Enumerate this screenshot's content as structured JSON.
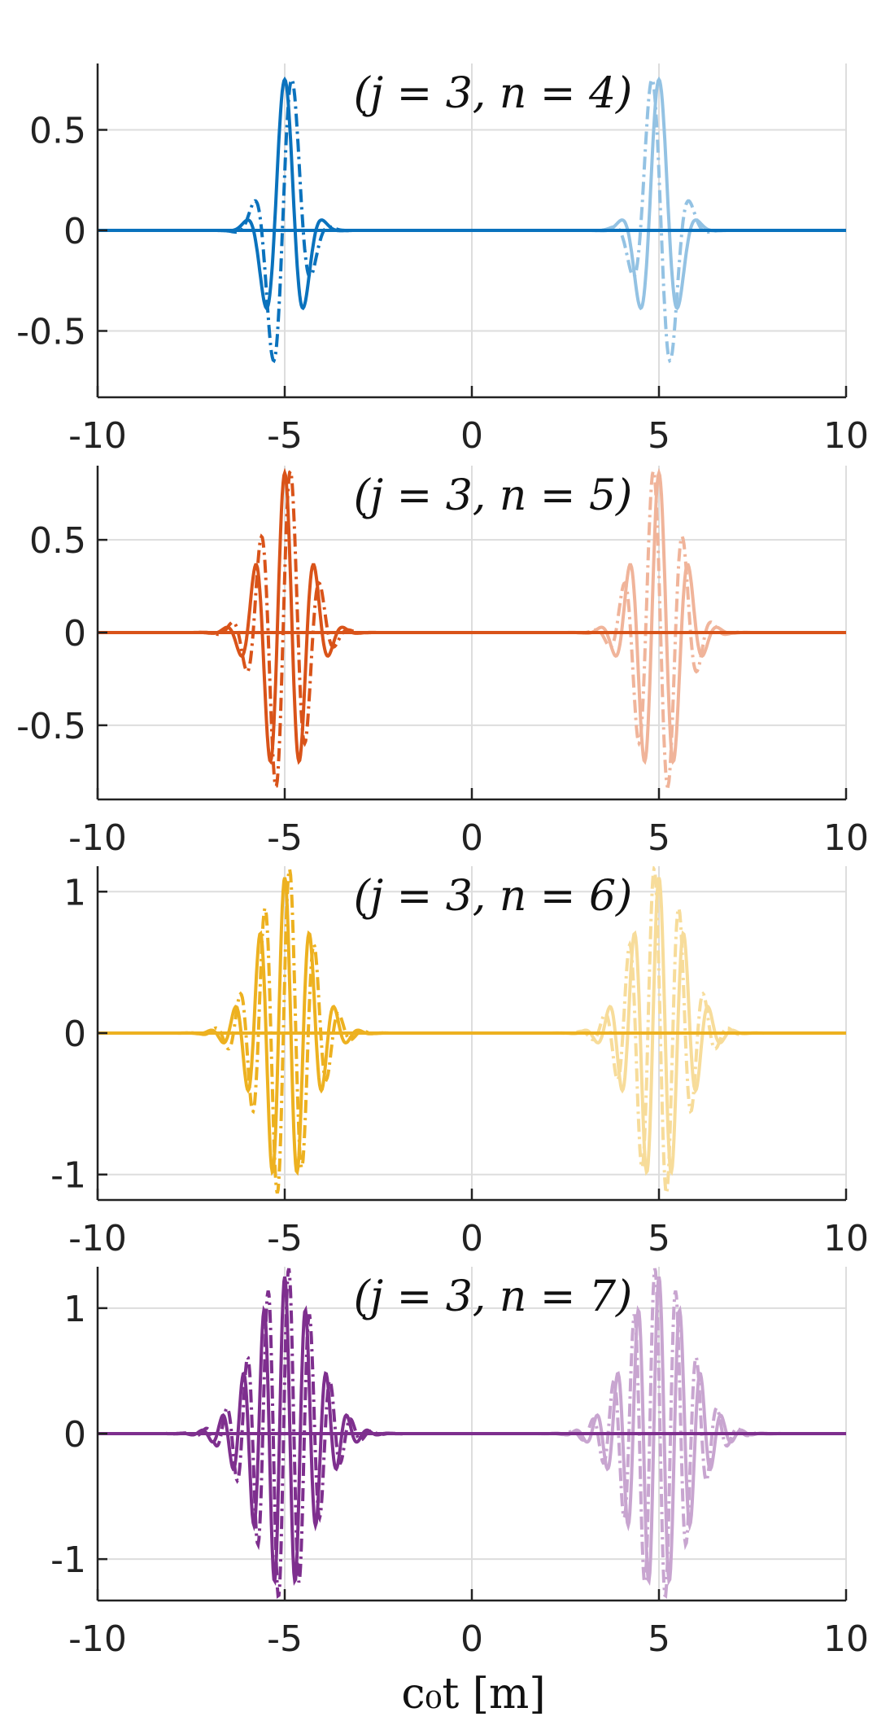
{
  "figure": {
    "xlabel": "c₀t [m]"
  },
  "chart_data": [
    {
      "type": "line",
      "title": "(j = 3, n = 4)",
      "xlim": [
        -10,
        10
      ],
      "ylim": [
        -0.83,
        0.83
      ],
      "xticks": [
        -10,
        -5,
        0,
        5,
        10
      ],
      "yticks": [
        -0.5,
        0,
        0.5
      ],
      "xtick_labels": [
        "-10",
        "-5",
        "0",
        "5",
        "10"
      ],
      "ytick_labels": [
        "-0.5",
        "0",
        "0.5"
      ],
      "grid": true,
      "color": "#0a72bd",
      "light_color": "#93c2e3",
      "wavelets": [
        {
          "center": -5.0,
          "real_amp": 0.75,
          "imag_amp": 0.83,
          "width": 0.45,
          "frequency": 0.9,
          "style": "solid+dashdot"
        },
        {
          "center": 5.0,
          "real_amp": 0.75,
          "imag_amp": 0.83,
          "width": 0.45,
          "frequency": 0.9,
          "style": "solid+dashdot",
          "faded": true
        }
      ]
    },
    {
      "type": "line",
      "title": "(j = 3, n = 5)",
      "xlim": [
        -10,
        10
      ],
      "ylim": [
        -0.9,
        0.9
      ],
      "xticks": [
        -10,
        -5,
        0,
        5,
        10
      ],
      "yticks": [
        -0.5,
        0,
        0.5
      ],
      "xtick_labels": [
        "-10",
        "-5",
        "0",
        "5",
        "10"
      ],
      "ytick_labels": [
        "-0.5",
        "0",
        "0.5"
      ],
      "grid": true,
      "color": "#d95319",
      "light_color": "#f0b49a",
      "wavelets": [
        {
          "center": -5.0,
          "real_amp": 0.86,
          "imag_amp": 0.9,
          "width": 0.6,
          "frequency": 1.25,
          "style": "solid+dashdot"
        },
        {
          "center": 5.0,
          "real_amp": 0.86,
          "imag_amp": 0.9,
          "width": 0.6,
          "frequency": 1.25,
          "style": "solid+dashdot",
          "faded": true
        }
      ]
    },
    {
      "type": "line",
      "title": "(j = 3, n = 6)",
      "xlim": [
        -10,
        10
      ],
      "ylim": [
        -1.18,
        1.18
      ],
      "xticks": [
        -10,
        -5,
        0,
        5,
        10
      ],
      "yticks": [
        -1,
        0,
        1
      ],
      "xtick_labels": [
        "-10",
        "-5",
        "0",
        "5",
        "10"
      ],
      "ytick_labels": [
        "-1",
        "0",
        "1"
      ],
      "grid": true,
      "color": "#edb120",
      "light_color": "#f7dc9a",
      "wavelets": [
        {
          "center": -5.0,
          "real_amp": 1.1,
          "imag_amp": 1.18,
          "width": 0.7,
          "frequency": 1.5,
          "style": "solid+dashdot"
        },
        {
          "center": 5.0,
          "real_amp": 1.1,
          "imag_amp": 1.18,
          "width": 0.7,
          "frequency": 1.5,
          "style": "solid+dashdot",
          "faded": true
        }
      ]
    },
    {
      "type": "line",
      "title": "(j = 3, n = 7)",
      "xlim": [
        -10,
        10
      ],
      "ylim": [
        -1.33,
        1.33
      ],
      "xticks": [
        -10,
        -5,
        0,
        5,
        10
      ],
      "yticks": [
        -1,
        0,
        1
      ],
      "xtick_labels": [
        "-10",
        "-5",
        "0",
        "5",
        "10"
      ],
      "ytick_labels": [
        "-1",
        "0",
        "1"
      ],
      "grid": true,
      "color": "#7e2f8e",
      "light_color": "#c8a5d0",
      "wavelets": [
        {
          "center": -5.0,
          "real_amp": 1.25,
          "imag_amp": 1.33,
          "width": 0.8,
          "frequency": 1.8,
          "style": "solid+dashdot"
        },
        {
          "center": 5.0,
          "real_amp": 1.25,
          "imag_amp": 1.33,
          "width": 0.8,
          "frequency": 1.8,
          "style": "solid+dashdot",
          "faded": true
        }
      ]
    }
  ]
}
